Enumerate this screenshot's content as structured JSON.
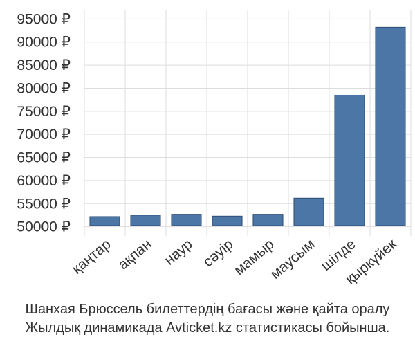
{
  "chart_data": {
    "type": "bar",
    "categories": [
      "қаңтар",
      "ақпан",
      "наур",
      "сәуір",
      "мамыр",
      "маусым",
      "шілде",
      "қыркүйек"
    ],
    "values": [
      52200,
      52500,
      52700,
      52300,
      52700,
      56200,
      78500,
      93200
    ],
    "y_ticks": [
      "50000 ₽",
      "55000 ₽",
      "60000 ₽",
      "65000 ₽",
      "70000 ₽",
      "75000 ₽",
      "80000 ₽",
      "85000 ₽",
      "90000 ₽",
      "95000 ₽"
    ],
    "ylim": [
      48000,
      97000
    ],
    "grid": true,
    "bar_color": "#4c76a6"
  },
  "caption": {
    "line1": "Шанхая Брюссель билеттердің бағасы және қайта оралу",
    "line2": "Жылдық динамикада Avticket.kz статистикасы бойынша."
  }
}
